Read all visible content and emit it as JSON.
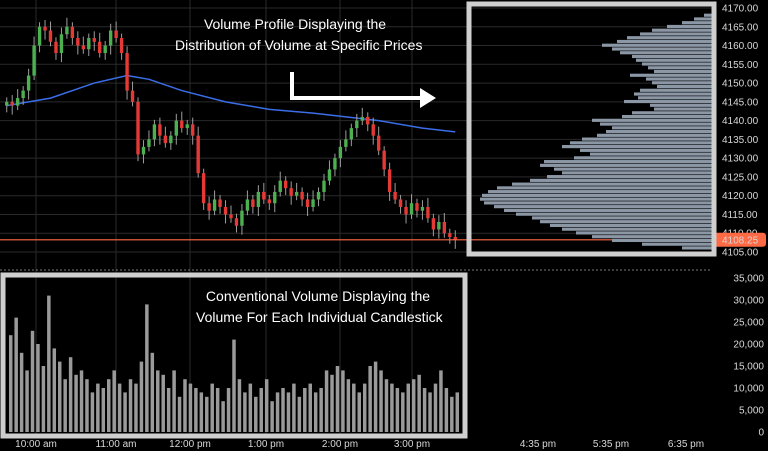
{
  "annotations": {
    "profile_title_line1": "Volume Profile Displaying the",
    "profile_title_line2": "Distribution of Volume at Specific Prices",
    "volume_title_line1": "Conventional Volume Displaying the",
    "volume_title_line2": "Volume For Each Individual Candlestick"
  },
  "colors": {
    "background": "#000000",
    "up_candle": "#4caf50",
    "down_candle": "#e53935",
    "wick": "#9e9e9e",
    "moving_average": "#3a6ee8",
    "last_price_line": "#ff6a45",
    "profile_bars": "#8c97a6",
    "volume_bars": "#9a9a9a",
    "box_border": "#cfcfcf",
    "grid": "#2a2a2a"
  },
  "chart_data": [
    {
      "type": "candlestick",
      "x_ticks": [
        "10:00 am",
        "11:00 am",
        "12:00 pm",
        "1:00 pm",
        "2:00 pm",
        "3:00 pm"
      ],
      "y_ticks": [
        "4170.00",
        "4165.00",
        "4160.00",
        "4155.00",
        "4150.00",
        "4145.00",
        "4140.00",
        "4135.00",
        "4130.00",
        "4125.00",
        "4120.00",
        "4115.00",
        "4110.00",
        "4105.00"
      ],
      "ylim": [
        4105,
        4170
      ],
      "last_price": "4108.25",
      "closes": [
        4145,
        4144,
        4146,
        4148,
        4152,
        4160,
        4165,
        4164,
        4161,
        4158,
        4163,
        4165,
        4162,
        4160,
        4159,
        4162,
        4161,
        4158,
        4160,
        4164,
        4162,
        4158,
        4148,
        4145,
        4131,
        4133,
        4135,
        4139,
        4136,
        4134,
        4136,
        4140,
        4138,
        4139,
        4136,
        4126,
        4118,
        4116,
        4119,
        4117,
        4115,
        4114,
        4112,
        4116,
        4119,
        4117,
        4121,
        4119,
        4118,
        4121,
        4124,
        4122,
        4120,
        4121,
        4119,
        4117,
        4119,
        4121,
        4124,
        4127,
        4130,
        4133,
        4135,
        4138,
        4140,
        4141,
        4139,
        4136,
        4132,
        4127,
        4121,
        4119,
        4117,
        4115,
        4118,
        4116,
        4117,
        4114,
        4111,
        4113,
        4110,
        4109,
        4108.25
      ],
      "moving_average": {
        "name": "",
        "points": [
          [
            0,
            4144
          ],
          [
            8,
            4146
          ],
          [
            16,
            4150
          ],
          [
            22,
            4152
          ],
          [
            26,
            4151
          ],
          [
            32,
            4148
          ],
          [
            40,
            4145
          ],
          [
            48,
            4143
          ],
          [
            56,
            4142
          ],
          [
            62,
            4141
          ],
          [
            68,
            4140
          ],
          [
            76,
            4138
          ],
          [
            82,
            4137
          ]
        ]
      }
    },
    {
      "type": "bar",
      "title": "Volume Profile",
      "orientation": "horizontal",
      "price_levels": [
        4168,
        4167,
        4166,
        4165,
        4164,
        4163,
        4162,
        4161,
        4160,
        4159,
        4158,
        4157,
        4156,
        4155,
        4154,
        4153,
        4152,
        4151,
        4150,
        4149,
        4148,
        4147,
        4146,
        4145,
        4144,
        4143,
        4142,
        4141,
        4140,
        4139,
        4138,
        4137,
        4136,
        4135,
        4134,
        4133,
        4132,
        4131,
        4130,
        4129,
        4128,
        4127,
        4126,
        4125,
        4124,
        4123,
        4122,
        4121,
        4120,
        4119,
        4118,
        4117,
        4116,
        4115,
        4114,
        4113,
        4112,
        4111,
        4110,
        4109,
        4108,
        4107,
        4106
      ],
      "values": [
        8,
        18,
        30,
        45,
        60,
        72,
        85,
        95,
        110,
        100,
        92,
        80,
        76,
        70,
        64,
        58,
        82,
        66,
        60,
        55,
        72,
        78,
        74,
        88,
        62,
        58,
        80,
        90,
        120,
        112,
        100,
        106,
        115,
        130,
        142,
        150,
        132,
        122,
        138,
        168,
        172,
        158,
        150,
        165,
        182,
        200,
        215,
        224,
        230,
        232,
        228,
        218,
        208,
        196,
        180,
        172,
        162,
        150,
        136,
        120,
        100,
        70,
        30
      ],
      "x_ticks": [
        "4:35 pm",
        "5:35 pm",
        "6:35 pm"
      ]
    },
    {
      "type": "bar",
      "title": "Volume",
      "ylim": [
        0,
        35000
      ],
      "y_ticks": [
        "35,000",
        "30,000",
        "25,000",
        "20,000",
        "15,000",
        "10,000",
        "5,000",
        "0"
      ],
      "values": [
        22000,
        26000,
        18000,
        14000,
        23000,
        20000,
        15000,
        31000,
        19000,
        16000,
        12000,
        17000,
        13000,
        14000,
        12000,
        9000,
        11000,
        10000,
        12000,
        14000,
        11000,
        9000,
        12000,
        11000,
        16000,
        29000,
        18000,
        14000,
        13000,
        10000,
        14000,
        8000,
        12000,
        11000,
        10000,
        9000,
        8000,
        11000,
        10000,
        7000,
        10000,
        21000,
        12000,
        9000,
        11000,
        8000,
        10000,
        12000,
        7000,
        9000,
        10000,
        9000,
        11000,
        8000,
        10000,
        11000,
        9000,
        10000,
        14000,
        13000,
        15000,
        14000,
        12000,
        11000,
        9000,
        11000,
        15000,
        16000,
        14000,
        12000,
        11000,
        10000,
        9000,
        11000,
        12000,
        13000,
        10000,
        9000,
        11000,
        14000,
        10000,
        8000,
        9000
      ]
    }
  ]
}
